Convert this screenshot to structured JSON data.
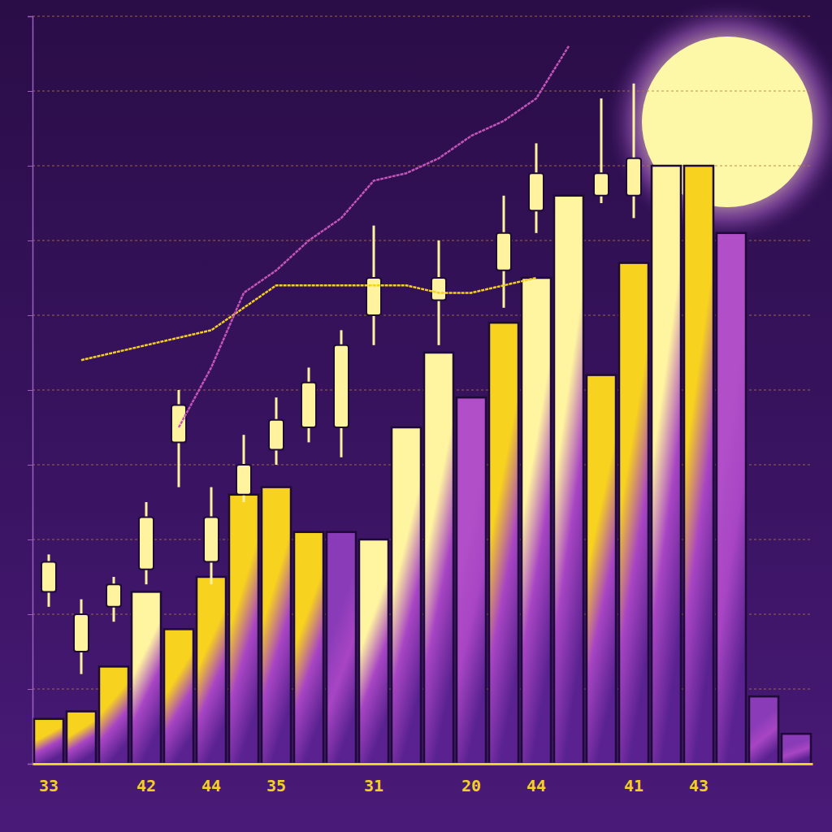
{
  "chart_data": {
    "type": "bar",
    "categories": [
      "33",
      null,
      null,
      "42",
      null,
      "44",
      null,
      "35",
      null,
      null,
      "31",
      null,
      null,
      "20",
      null,
      "44",
      null,
      null,
      "41",
      null,
      "43",
      null,
      null,
      null
    ],
    "ylim": [
      0,
      100
    ],
    "yticks": [
      0,
      10,
      20,
      30,
      40,
      50,
      60,
      70,
      80,
      90,
      100
    ],
    "grid": true,
    "tick_labels": "x",
    "series": [
      {
        "type": "bar",
        "values": [
          6,
          7,
          13,
          23,
          18,
          25,
          36,
          37,
          31,
          31,
          30,
          45,
          55,
          49,
          59,
          65,
          76,
          52,
          67,
          80,
          80,
          71,
          9,
          4
        ],
        "colors": [
          "#f7d21e",
          "#f7d21e",
          "#f7d21e",
          "#fff4a0",
          "#f7d21e",
          "#f7d21e",
          "#f7d21e",
          "#f7d21e",
          "#f7d21e",
          "#8a3cb8",
          "#fff4a0",
          "#fff4a0",
          "#fff4a0",
          "#b04fc8",
          "#f7d21e",
          "#fff4a0",
          "#fff4a0",
          "#f7d21e",
          "#f7d21e",
          "#fff4a0",
          "#f7d21e",
          "#b04fc8",
          "#8a3cb8",
          "#8a3cb8"
        ]
      },
      {
        "type": "candlestick",
        "color": "#fff3a0",
        "open": [
          23,
          15,
          21,
          26,
          43,
          27,
          36,
          42,
          45,
          45,
          60,
          null,
          62,
          null,
          66,
          74,
          null,
          76,
          76,
          null,
          null,
          null,
          null,
          null
        ],
        "close": [
          27,
          20,
          24,
          33,
          48,
          33,
          40,
          46,
          51,
          56,
          65,
          null,
          65,
          null,
          71,
          79,
          null,
          79,
          81,
          null,
          null,
          null,
          null,
          null
        ],
        "high": [
          28,
          22,
          25,
          35,
          50,
          37,
          44,
          49,
          53,
          58,
          72,
          null,
          70,
          null,
          76,
          83,
          null,
          89,
          91,
          null,
          null,
          null,
          null,
          null
        ],
        "low": [
          21,
          12,
          19,
          24,
          37,
          24,
          35,
          40,
          43,
          41,
          56,
          null,
          56,
          null,
          61,
          71,
          null,
          75,
          73,
          null,
          null,
          null,
          null,
          null
        ]
      },
      {
        "type": "line",
        "color": "#f5d020",
        "values": [
          null,
          54,
          55,
          56,
          57,
          58,
          61,
          64,
          64,
          64,
          64,
          64,
          63,
          63,
          64,
          65,
          null,
          null,
          null,
          null,
          null,
          null,
          null,
          null
        ]
      },
      {
        "type": "line",
        "color": "#c455b8",
        "values": [
          null,
          null,
          null,
          null,
          45,
          53,
          63,
          66,
          70,
          73,
          78,
          79,
          81,
          84,
          86,
          89,
          96,
          null,
          null,
          null,
          null,
          null,
          null,
          null
        ]
      }
    ]
  }
}
